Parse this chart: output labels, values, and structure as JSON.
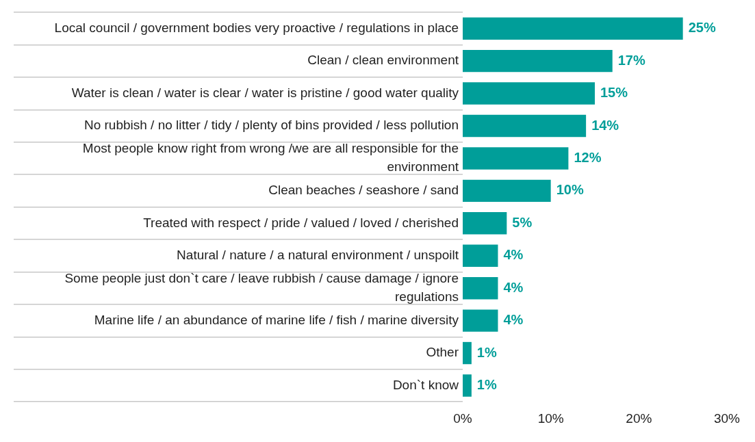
{
  "chart_data": {
    "type": "bar",
    "orientation": "horizontal",
    "categories": [
      "Local council / government bodies very proactive / regulations in place",
      "Clean / clean environment",
      "Water is clean / water is clear / water is pristine / good water quality",
      "No rubbish / no litter / tidy / plenty of bins provided / less pollution",
      "Most people know right from wrong /we are all responsible for the environment",
      "Clean beaches / seashore / sand",
      "Treated with respect / pride / valued / loved / cherished",
      "Natural / nature / a natural environment / unspoilt",
      "Some people just don`t care / leave rubbish / cause damage / ignore regulations",
      "Marine life / an abundance of marine life / fish / marine diversity",
      "Other",
      "Don`t know"
    ],
    "values": [
      25,
      17,
      15,
      14,
      12,
      10,
      5,
      4,
      4,
      4,
      1,
      1
    ],
    "value_labels": [
      "25%",
      "17%",
      "15%",
      "14%",
      "12%",
      "10%",
      "5%",
      "4%",
      "4%",
      "4%",
      "1%",
      "1%"
    ],
    "color": "#009e99",
    "xlim": [
      0,
      30
    ],
    "xticks": [
      {
        "value": 0,
        "label": "0%"
      },
      {
        "value": 10,
        "label": "10%"
      },
      {
        "value": 20,
        "label": "20%"
      },
      {
        "value": 30,
        "label": "30%"
      }
    ],
    "grid": false,
    "legend": false
  }
}
